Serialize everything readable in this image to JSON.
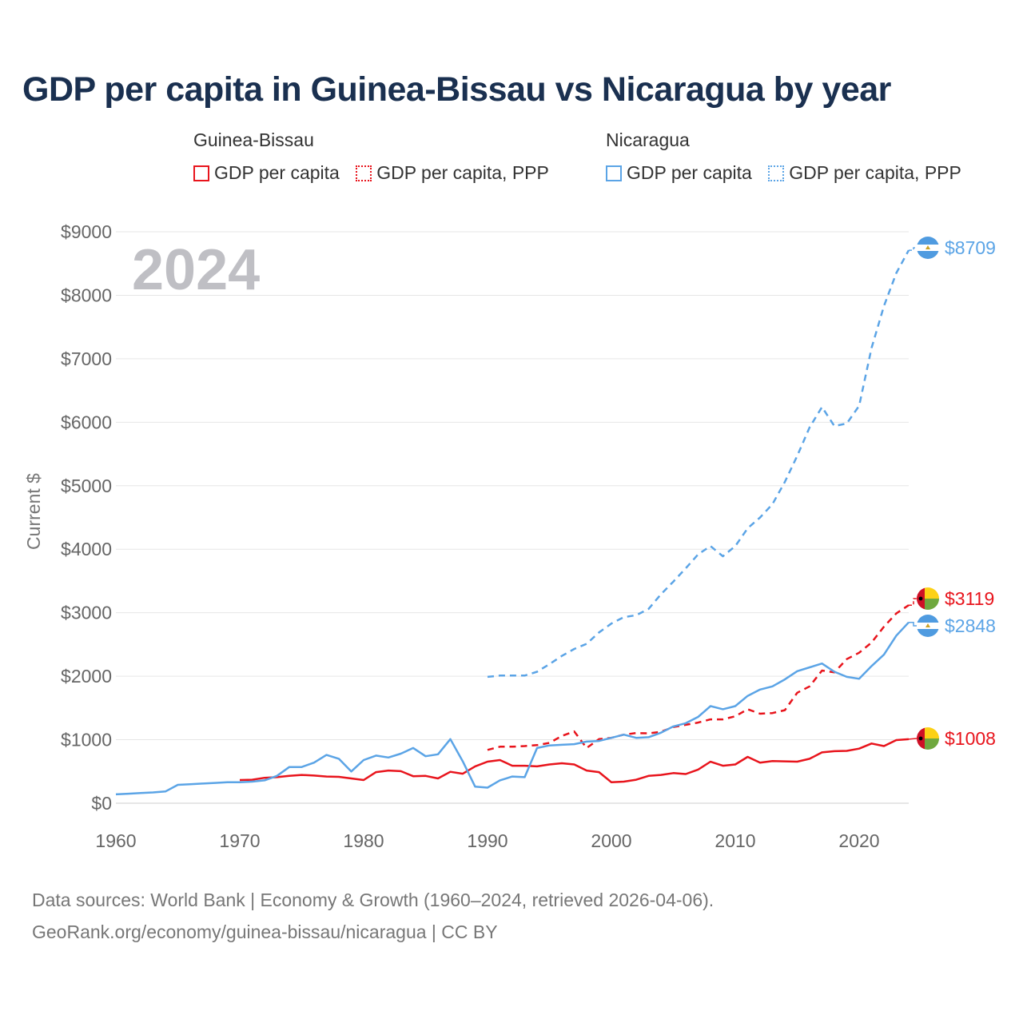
{
  "title": "GDP per capita in Guinea-Bissau vs Nicaragua by year",
  "legend": {
    "groups": [
      {
        "name": "Guinea-Bissau",
        "color": "#e8141c",
        "items": [
          {
            "label": "GDP per capita",
            "style": "solid"
          },
          {
            "label": "GDP per capita, PPP",
            "style": "dotted"
          }
        ]
      },
      {
        "name": "Nicaragua",
        "color": "#5ba4e6",
        "items": [
          {
            "label": "GDP per capita",
            "style": "solid"
          },
          {
            "label": "GDP per capita, PPP",
            "style": "dotted"
          }
        ]
      }
    ]
  },
  "year_watermark": "2024",
  "footer": {
    "line1": "Data sources: World Bank | Economy & Growth (1960–2024, retrieved 2026-04-06).",
    "line2": "GeoRank.org/economy/guinea-bissau/nicaragua | CC BY"
  },
  "chart_data": {
    "type": "line",
    "title": "GDP per capita in Guinea-Bissau vs Nicaragua by year",
    "ylabel": "Current $",
    "xlabel": "",
    "xlim": [
      1960,
      2024
    ],
    "ylim": [
      0,
      9000
    ],
    "x_ticks": [
      1960,
      1970,
      1980,
      1990,
      2000,
      2010,
      2020
    ],
    "x_tick_labels": [
      "1960",
      "1970",
      "1980",
      "1990",
      "2000",
      "2010",
      "2020"
    ],
    "y_ticks": [
      0,
      1000,
      2000,
      3000,
      4000,
      5000,
      6000,
      7000,
      8000,
      9000
    ],
    "y_tick_labels": [
      "$0",
      "$1000",
      "$2000",
      "$3000",
      "$4000",
      "$5000",
      "$6000",
      "$7000",
      "$8000",
      "$9000"
    ],
    "grid": true,
    "series": [
      {
        "name": "Guinea-Bissau GDP per capita",
        "country": "Guinea-Bissau",
        "color": "#e8141c",
        "dash": "solid",
        "end_label": "$1008",
        "flag": "guinea-bissau",
        "x": [
          1970,
          1971,
          1972,
          1973,
          1974,
          1975,
          1976,
          1977,
          1978,
          1979,
          1980,
          1981,
          1982,
          1983,
          1984,
          1985,
          1986,
          1987,
          1988,
          1989,
          1990,
          1991,
          1992,
          1993,
          1994,
          1995,
          1996,
          1997,
          1998,
          1999,
          2000,
          2001,
          2002,
          2003,
          2004,
          2005,
          2006,
          2007,
          2008,
          2009,
          2010,
          2011,
          2012,
          2013,
          2014,
          2015,
          2016,
          2017,
          2018,
          2019,
          2020,
          2021,
          2022,
          2023,
          2024
        ],
        "values": [
          365,
          370,
          400,
          410,
          430,
          445,
          435,
          420,
          415,
          390,
          365,
          490,
          515,
          505,
          425,
          430,
          390,
          495,
          465,
          580,
          655,
          680,
          590,
          590,
          580,
          610,
          630,
          610,
          515,
          490,
          330,
          340,
          370,
          430,
          445,
          475,
          460,
          530,
          655,
          590,
          610,
          730,
          640,
          665,
          660,
          655,
          700,
          800,
          820,
          825,
          860,
          940,
          900,
          995,
          1008
        ]
      },
      {
        "name": "Guinea-Bissau GDP per capita, PPP",
        "country": "Guinea-Bissau",
        "color": "#e8141c",
        "dash": "dashed",
        "end_label": "$3119",
        "flag": "guinea-bissau",
        "x": [
          1990,
          1991,
          1992,
          1993,
          1994,
          1995,
          1996,
          1997,
          1998,
          1999,
          2000,
          2001,
          2002,
          2003,
          2004,
          2005,
          2006,
          2007,
          2008,
          2009,
          2010,
          2011,
          2012,
          2013,
          2014,
          2015,
          2016,
          2017,
          2018,
          2019,
          2020,
          2021,
          2022,
          2023,
          2024
        ],
        "values": [
          840,
          890,
          890,
          900,
          915,
          950,
          1060,
          1130,
          870,
          1010,
          1030,
          1080,
          1105,
          1100,
          1125,
          1200,
          1235,
          1270,
          1320,
          1320,
          1370,
          1480,
          1410,
          1420,
          1465,
          1740,
          1840,
          2090,
          2060,
          2270,
          2370,
          2530,
          2780,
          2990,
          3119
        ]
      },
      {
        "name": "Nicaragua GDP per capita",
        "country": "Nicaragua",
        "color": "#5ba4e6",
        "dash": "solid",
        "end_label": "$2848",
        "flag": "nicaragua",
        "x": [
          1960,
          1961,
          1962,
          1963,
          1964,
          1965,
          1966,
          1967,
          1968,
          1969,
          1970,
          1971,
          1972,
          1973,
          1974,
          1975,
          1976,
          1977,
          1978,
          1979,
          1980,
          1981,
          1982,
          1983,
          1984,
          1985,
          1986,
          1987,
          1988,
          1989,
          1990,
          1991,
          1992,
          1993,
          1994,
          1995,
          1996,
          1997,
          1998,
          1999,
          2000,
          2001,
          2002,
          2003,
          2004,
          2005,
          2006,
          2007,
          2008,
          2009,
          2010,
          2011,
          2012,
          2013,
          2014,
          2015,
          2016,
          2017,
          2018,
          2019,
          2020,
          2021,
          2022,
          2023,
          2024
        ],
        "values": [
          140,
          150,
          160,
          170,
          185,
          290,
          300,
          310,
          320,
          330,
          330,
          340,
          360,
          430,
          570,
          570,
          640,
          760,
          700,
          500,
          680,
          750,
          720,
          780,
          870,
          740,
          770,
          1010,
          660,
          260,
          245,
          360,
          420,
          410,
          870,
          910,
          920,
          930,
          970,
          980,
          1030,
          1080,
          1030,
          1040,
          1110,
          1210,
          1260,
          1360,
          1530,
          1480,
          1530,
          1690,
          1790,
          1840,
          1950,
          2080,
          2140,
          2200,
          2070,
          1990,
          1960,
          2160,
          2340,
          2640,
          2848
        ]
      },
      {
        "name": "Nicaragua GDP per capita, PPP",
        "country": "Nicaragua",
        "color": "#5ba4e6",
        "dash": "dashed",
        "end_label": "$8709",
        "flag": "nicaragua",
        "x": [
          1990,
          1991,
          1992,
          1993,
          1994,
          1995,
          1996,
          1997,
          1998,
          1999,
          2000,
          2001,
          2002,
          2003,
          2004,
          2005,
          2006,
          2007,
          2008,
          2009,
          2010,
          2011,
          2012,
          2013,
          2014,
          2015,
          2016,
          2017,
          2018,
          2019,
          2020,
          2021,
          2022,
          2023,
          2024
        ],
        "values": [
          1990,
          2010,
          2010,
          2010,
          2070,
          2190,
          2320,
          2430,
          2510,
          2690,
          2830,
          2930,
          2960,
          3060,
          3290,
          3490,
          3700,
          3920,
          4050,
          3890,
          4050,
          4330,
          4500,
          4710,
          5060,
          5470,
          5920,
          6240,
          5940,
          5980,
          6260,
          7170,
          7830,
          8350,
          8709
        ]
      }
    ]
  }
}
